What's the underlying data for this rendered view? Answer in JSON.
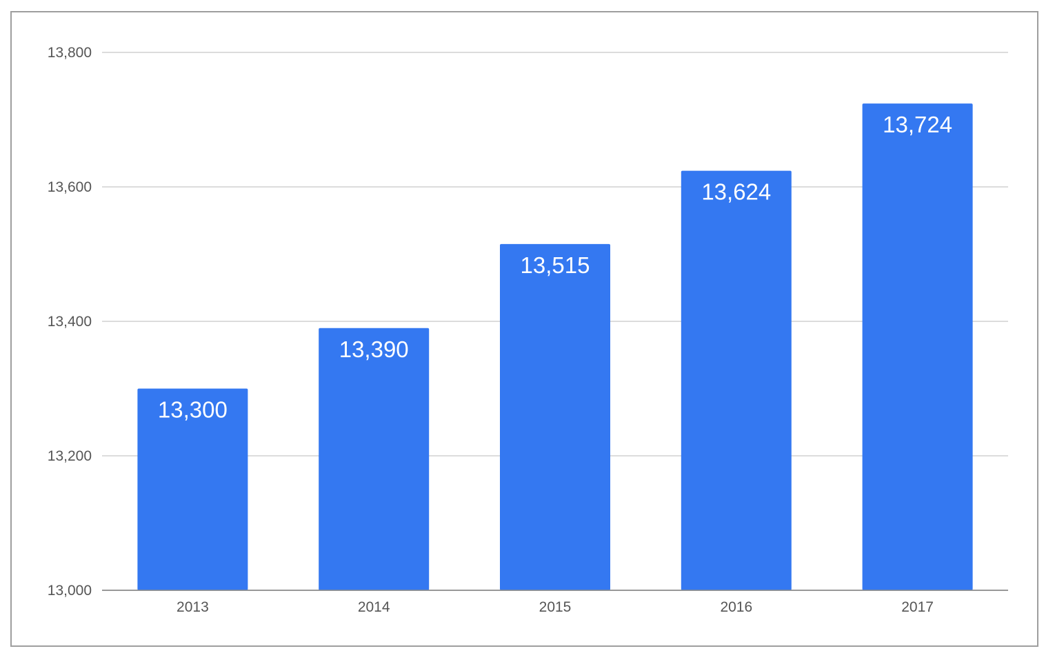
{
  "chart_data": {
    "type": "bar",
    "categories": [
      "2013",
      "2014",
      "2015",
      "2016",
      "2017"
    ],
    "values": [
      13300,
      13390,
      13515,
      13624,
      13724
    ],
    "data_labels": [
      "13,300",
      "13,390",
      "13,515",
      "13,624",
      "13,724"
    ],
    "title": "",
    "xlabel": "",
    "ylabel": "",
    "ylim": [
      13000,
      13800
    ],
    "y_ticks": [
      13000,
      13200,
      13400,
      13600,
      13800
    ],
    "y_tick_labels": [
      "13,000",
      "13,200",
      "13,400",
      "13,600",
      "13,800"
    ],
    "grid": true,
    "legend": "none",
    "bar_color": "#3478f1",
    "grid_color": "#c6c6c6"
  }
}
